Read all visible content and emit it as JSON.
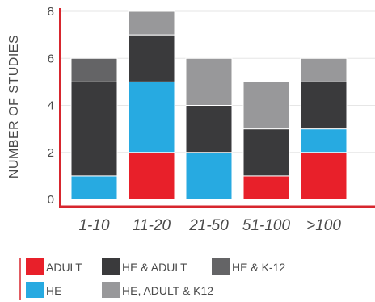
{
  "chart_data": {
    "type": "bar",
    "stacked": true,
    "ylabel": "NUMBER OF STUDIES",
    "xlabel": "",
    "ylim": [
      0,
      8
    ],
    "yticks": [
      0,
      2,
      4,
      6,
      8
    ],
    "grid": true,
    "legend_position": "bottom",
    "categories": [
      "1-10",
      "11-20",
      "21-50",
      "51-100",
      ">100"
    ],
    "series": [
      {
        "name": "ADULT",
        "color": "#e8202a",
        "values": [
          0,
          2,
          0,
          1,
          2
        ]
      },
      {
        "name": "HE",
        "color": "#27aae1",
        "values": [
          1,
          3,
          2,
          0,
          1
        ]
      },
      {
        "name": "HE & ADULT",
        "color": "#3a3a3c",
        "values": [
          4,
          2,
          2,
          2,
          2
        ]
      },
      {
        "name": "HE & K-12",
        "color": "#646466",
        "values": [
          1,
          0,
          0,
          0,
          0
        ]
      },
      {
        "name": "HE, ADULT & K12",
        "color": "#98989a",
        "values": [
          0,
          1,
          2,
          2,
          1
        ]
      }
    ],
    "axis_color": "#d7262e",
    "grid_color": "#e6e6e6"
  }
}
